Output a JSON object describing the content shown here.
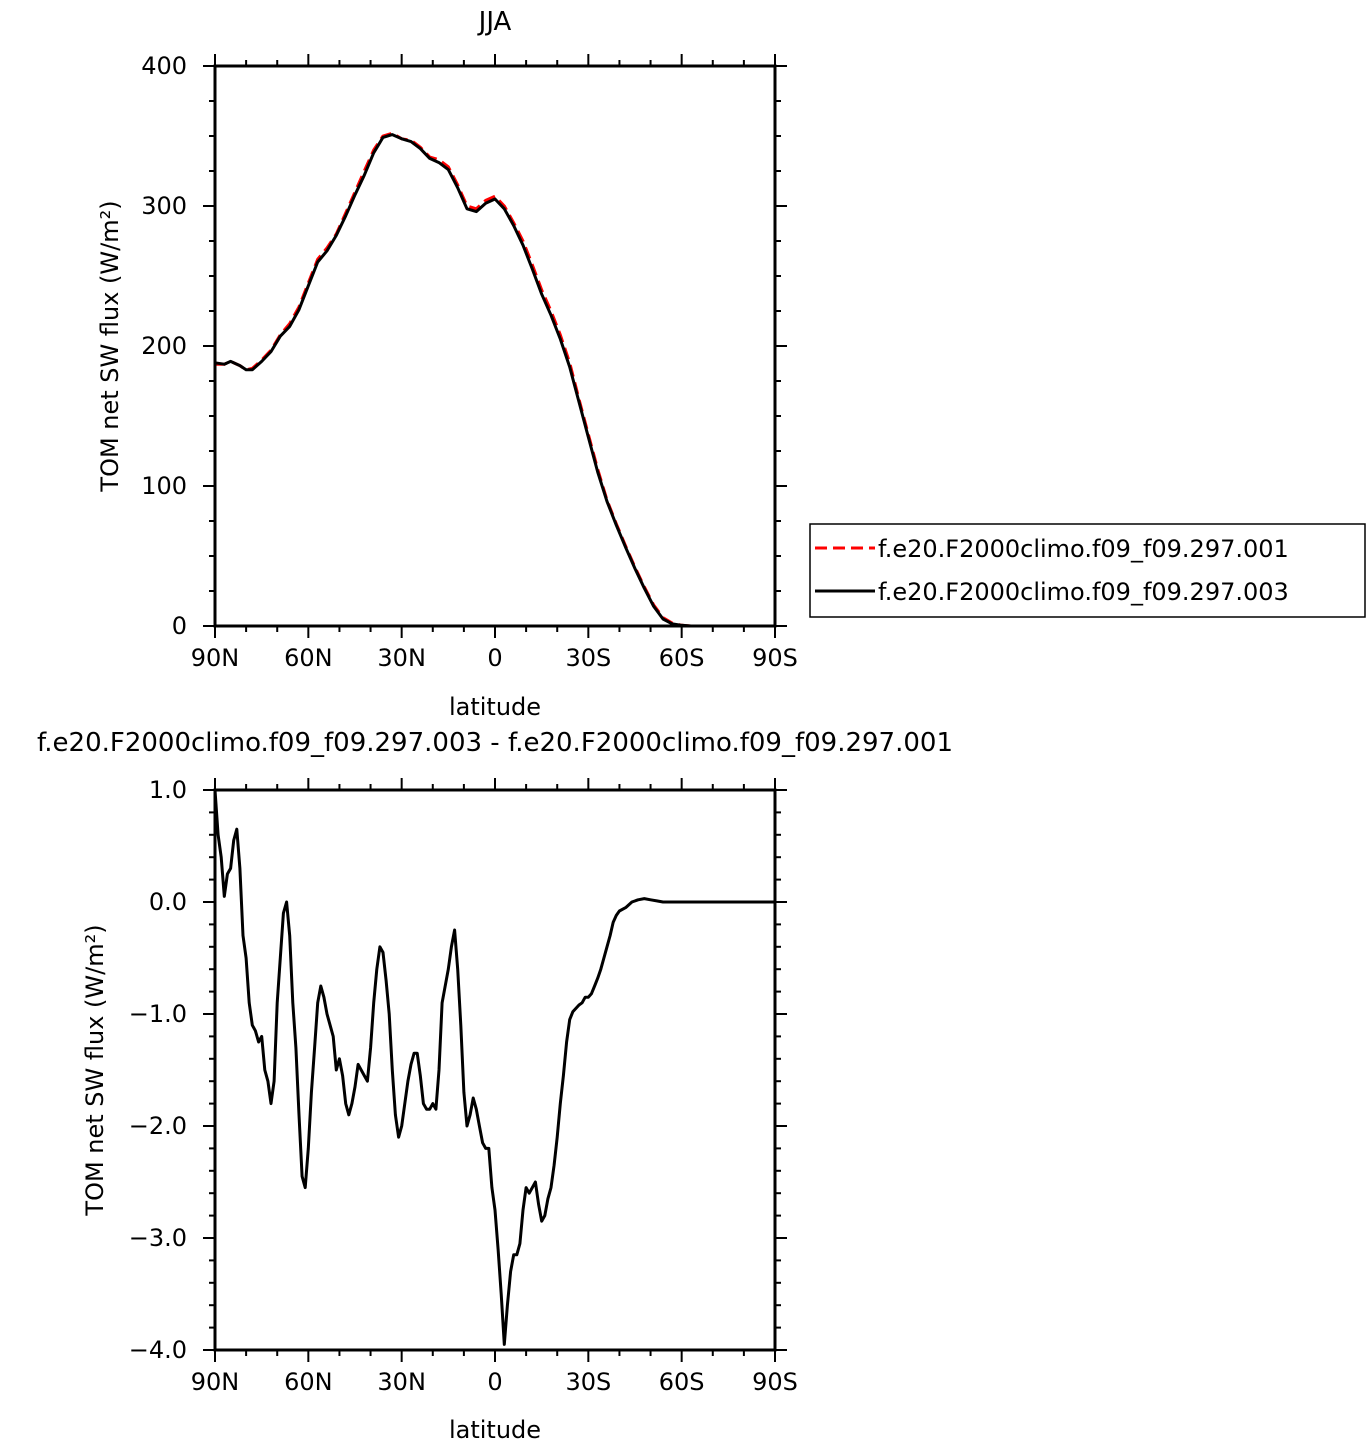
{
  "chart_data": [
    {
      "type": "line",
      "title": "JJA",
      "xlabel": "latitude",
      "ylabel": "TOM net SW flux (W/m²)",
      "x_ticks": [
        {
          "value": 90,
          "label": "90N"
        },
        {
          "value": 60,
          "label": "60N"
        },
        {
          "value": 30,
          "label": "30N"
        },
        {
          "value": 0,
          "label": "0"
        },
        {
          "value": -30,
          "label": "30S"
        },
        {
          "value": -60,
          "label": "60S"
        },
        {
          "value": -90,
          "label": "90S"
        }
      ],
      "y_ticks": [
        {
          "value": 0,
          "label": "0"
        },
        {
          "value": 100,
          "label": "100"
        },
        {
          "value": 200,
          "label": "200"
        },
        {
          "value": 300,
          "label": "300"
        },
        {
          "value": 400,
          "label": "400"
        }
      ],
      "xlim": [
        90,
        -90
      ],
      "ylim": [
        0,
        400
      ],
      "legend_position": "right",
      "series": [
        {
          "name": "f.e20.F2000climo.f09_f09.297.001",
          "color": "#ff0000",
          "dash": "dashed",
          "x": [
            90,
            87,
            85,
            82,
            80,
            78,
            75,
            72,
            69,
            66,
            63,
            60,
            57,
            54,
            51,
            48,
            45,
            42,
            39,
            36,
            33,
            30,
            27,
            24,
            21,
            18,
            15,
            12,
            9,
            6,
            3,
            0,
            -3,
            -6,
            -9,
            -12,
            -15,
            -18,
            -21,
            -24,
            -27,
            -30,
            -33,
            -36,
            -39,
            -42,
            -45,
            -48,
            -51,
            -54,
            -57,
            -60,
            -63,
            -66,
            -69,
            -72,
            -75,
            -78,
            -81,
            -84,
            -87,
            -90
          ],
          "y": [
            187,
            187,
            189,
            186,
            183,
            184,
            190,
            197,
            208,
            216,
            228,
            245,
            262,
            270,
            280,
            295,
            310,
            325,
            340,
            350,
            352,
            348,
            347,
            342,
            335,
            333,
            328,
            315,
            300,
            298,
            304,
            307,
            300,
            288,
            275,
            258,
            240,
            225,
            208,
            188,
            162,
            137,
            112,
            90,
            73,
            57,
            42,
            28,
            15,
            6,
            2,
            0.5,
            0,
            0,
            0,
            0,
            0,
            0,
            0,
            0,
            0,
            0
          ]
        },
        {
          "name": "f.e20.F2000climo.f09_f09.297.003",
          "color": "#000000",
          "dash": "solid",
          "x": [
            90,
            87,
            85,
            82,
            80,
            78,
            75,
            72,
            69,
            66,
            63,
            60,
            57,
            54,
            51,
            48,
            45,
            42,
            39,
            36,
            33,
            30,
            27,
            24,
            21,
            18,
            15,
            12,
            9,
            6,
            3,
            0,
            -3,
            -6,
            -9,
            -12,
            -15,
            -18,
            -21,
            -24,
            -27,
            -30,
            -33,
            -36,
            -39,
            -42,
            -45,
            -48,
            -51,
            -54,
            -57,
            -60,
            -63,
            -66,
            -69,
            -72,
            -75,
            -78,
            -81,
            -84,
            -87,
            -90
          ],
          "y": [
            188,
            187,
            189,
            186,
            183,
            183,
            189,
            196,
            207,
            214,
            226,
            243,
            260,
            268,
            279,
            293,
            308,
            322,
            338,
            349,
            351,
            348,
            346,
            341,
            334,
            331,
            326,
            313,
            298,
            296,
            302,
            305,
            298,
            286,
            272,
            255,
            237,
            222,
            205,
            185,
            160,
            135,
            110,
            89,
            72,
            56,
            41,
            27,
            14,
            5,
            1.5,
            0.5,
            0,
            0,
            0,
            0,
            0,
            0,
            0,
            0,
            0,
            0
          ]
        }
      ]
    },
    {
      "type": "line",
      "title": "f.e20.F2000climo.f09_f09.297.003 - f.e20.F2000climo.f09_f09.297.001",
      "xlabel": "latitude",
      "ylabel": "TOM net SW flux (W/m²)",
      "x_ticks": [
        {
          "value": 90,
          "label": "90N"
        },
        {
          "value": 60,
          "label": "60N"
        },
        {
          "value": 30,
          "label": "30N"
        },
        {
          "value": 0,
          "label": "0"
        },
        {
          "value": -30,
          "label": "30S"
        },
        {
          "value": -60,
          "label": "60S"
        },
        {
          "value": -90,
          "label": "90S"
        }
      ],
      "y_ticks": [
        {
          "value": -4,
          "label": "−4.0"
        },
        {
          "value": -3,
          "label": "−3.0"
        },
        {
          "value": -2,
          "label": "−2.0"
        },
        {
          "value": -1,
          "label": "−1.0"
        },
        {
          "value": 0,
          "label": "0.0"
        },
        {
          "value": 1,
          "label": "1.0"
        }
      ],
      "xlim": [
        90,
        -90
      ],
      "ylim": [
        -4,
        1
      ],
      "series": [
        {
          "name": "",
          "color": "#000000",
          "dash": "solid",
          "x": [
            90,
            89,
            88,
            87,
            86,
            85,
            84,
            83,
            82,
            81,
            80,
            79,
            78,
            77,
            76,
            75,
            74,
            73,
            72,
            71,
            70,
            69,
            68,
            67,
            66,
            65,
            64,
            63,
            62,
            61,
            60,
            59,
            58,
            57,
            56,
            55,
            54,
            53,
            52,
            51,
            50,
            49,
            48,
            47,
            46,
            45,
            44,
            43,
            42,
            41,
            40,
            39,
            38,
            37,
            36,
            35,
            34,
            33,
            32,
            31,
            30,
            29,
            28,
            27,
            26,
            25,
            24,
            23,
            22,
            21,
            20,
            19,
            18,
            17,
            16,
            15,
            14,
            13,
            12,
            11,
            10,
            9,
            8,
            7,
            6,
            5,
            4,
            3,
            2,
            1,
            0,
            -1,
            -2,
            -3,
            -4,
            -5,
            -6,
            -7,
            -8,
            -9,
            -10,
            -11,
            -12,
            -13,
            -14,
            -15,
            -16,
            -17,
            -18,
            -19,
            -20,
            -21,
            -22,
            -23,
            -24,
            -25,
            -26,
            -27,
            -28,
            -29,
            -30,
            -31,
            -32,
            -33,
            -34,
            -35,
            -36,
            -37,
            -38,
            -39,
            -40,
            -42,
            -44,
            -46,
            -48,
            -50,
            -52,
            -54,
            -56,
            -58,
            -60,
            -63,
            -66,
            -70,
            -75,
            -80,
            -85,
            -90
          ],
          "y": [
            1.0,
            0.6,
            0.4,
            0.05,
            0.25,
            0.3,
            0.55,
            0.65,
            0.3,
            -0.3,
            -0.5,
            -0.9,
            -1.1,
            -1.15,
            -1.25,
            -1.2,
            -1.5,
            -1.6,
            -1.8,
            -1.6,
            -0.9,
            -0.5,
            -0.1,
            0.0,
            -0.3,
            -0.9,
            -1.3,
            -1.9,
            -2.45,
            -2.55,
            -2.2,
            -1.7,
            -1.3,
            -0.9,
            -0.75,
            -0.85,
            -1.0,
            -1.1,
            -1.2,
            -1.5,
            -1.4,
            -1.55,
            -1.8,
            -1.9,
            -1.8,
            -1.65,
            -1.45,
            -1.5,
            -1.55,
            -1.6,
            -1.3,
            -0.9,
            -0.6,
            -0.4,
            -0.45,
            -0.7,
            -1.0,
            -1.5,
            -1.9,
            -2.1,
            -2.0,
            -1.8,
            -1.6,
            -1.45,
            -1.35,
            -1.35,
            -1.55,
            -1.8,
            -1.85,
            -1.85,
            -1.8,
            -1.85,
            -1.5,
            -0.9,
            -0.75,
            -0.6,
            -0.4,
            -0.25,
            -0.6,
            -1.1,
            -1.7,
            -2.0,
            -1.9,
            -1.75,
            -1.85,
            -2.0,
            -2.15,
            -2.2,
            -2.2,
            -2.55,
            -2.75,
            -3.1,
            -3.5,
            -3.95,
            -3.6,
            -3.3,
            -3.15,
            -3.15,
            -3.05,
            -2.75,
            -2.55,
            -2.6,
            -2.55,
            -2.5,
            -2.7,
            -2.85,
            -2.8,
            -2.65,
            -2.55,
            -2.35,
            -2.1,
            -1.8,
            -1.55,
            -1.25,
            -1.05,
            -0.98,
            -0.95,
            -0.92,
            -0.9,
            -0.85,
            -0.85,
            -0.82,
            -0.75,
            -0.68,
            -0.6,
            -0.5,
            -0.4,
            -0.3,
            -0.18,
            -0.12,
            -0.08,
            -0.05,
            0.0,
            0.02,
            0.03,
            0.02,
            0.01,
            0.0,
            0.0,
            0.0,
            0.0,
            0.0,
            0.0,
            0.0,
            0.0,
            0.0,
            0.0,
            0.0
          ]
        }
      ]
    }
  ]
}
